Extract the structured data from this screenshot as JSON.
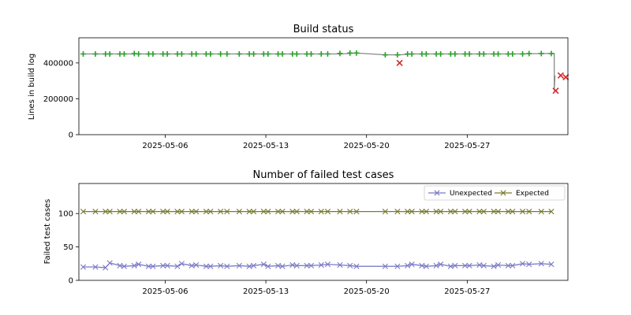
{
  "chart_data": [
    {
      "type": "line",
      "title": "Build status",
      "xlabel": "",
      "ylabel": "Lines in build log",
      "xlim": [
        "2025-04-30",
        "2025-06-03"
      ],
      "ylim": [
        0,
        540000
      ],
      "xticks": [
        "2025-05-06",
        "2025-05-13",
        "2025-05-20",
        "2025-05-27"
      ],
      "yticks": [
        0,
        200000,
        400000
      ],
      "ytick_labels": [
        "0",
        "200000",
        "400000"
      ],
      "legend": "none",
      "colors": {
        "line": "#888888",
        "pass": "#2ca02c",
        "fail": "#d62728"
      },
      "line": {
        "x": [
          "2025-04-30",
          "2025-05-18",
          "2025-05-19",
          "2025-05-21",
          "2025-05-22",
          "2025-05-23",
          "2025-05-30",
          "2025-06-01",
          "2025-06-02",
          "2025-06-02",
          "2025-06-02"
        ],
        "y": [
          450000,
          450000,
          455000,
          445000,
          445000,
          450000,
          450000,
          452000,
          452000,
          245000,
          330000
        ]
      },
      "series": [
        {
          "status": "pass",
          "x": [
            "2025-04-30",
            "2025-05-01",
            "2025-05-01",
            "2025-05-02",
            "2025-05-02",
            "2025-05-03",
            "2025-05-03",
            "2025-05-04",
            "2025-05-04",
            "2025-05-05",
            "2025-05-05",
            "2025-05-06",
            "2025-05-06",
            "2025-05-07",
            "2025-05-07",
            "2025-05-08",
            "2025-05-08",
            "2025-05-09",
            "2025-05-09",
            "2025-05-10",
            "2025-05-11",
            "2025-05-11",
            "2025-05-12",
            "2025-05-12",
            "2025-05-13",
            "2025-05-13",
            "2025-05-14",
            "2025-05-14",
            "2025-05-15",
            "2025-05-15",
            "2025-05-16",
            "2025-05-16",
            "2025-05-17",
            "2025-05-18",
            "2025-05-18",
            "2025-05-19",
            "2025-05-21",
            "2025-05-22",
            "2025-05-22",
            "2025-05-23",
            "2025-05-23",
            "2025-05-24",
            "2025-05-24",
            "2025-05-25",
            "2025-05-25",
            "2025-05-26",
            "2025-05-26",
            "2025-05-27",
            "2025-05-27",
            "2025-05-28",
            "2025-05-28",
            "2025-05-29",
            "2025-05-29",
            "2025-05-30",
            "2025-05-30",
            "2025-05-31",
            "2025-06-01",
            "2025-06-01"
          ],
          "y": [
            450000,
            450000,
            450000,
            450000,
            450000,
            450000,
            452000,
            450000,
            450000,
            450000,
            450000,
            450000,
            450000,
            450000,
            450000,
            450000,
            450000,
            450000,
            450000,
            450000,
            450000,
            450000,
            450000,
            450000,
            450000,
            450000,
            450000,
            450000,
            450000,
            450000,
            450000,
            450000,
            450000,
            453000,
            455000,
            455000,
            445000,
            445000,
            450000,
            450000,
            450000,
            450000,
            450000,
            450000,
            450000,
            450000,
            450000,
            450000,
            450000,
            450000,
            450000,
            450000,
            450000,
            450000,
            450000,
            452000,
            452000,
            452000
          ]
        },
        {
          "status": "fail",
          "x": [
            "2025-05-22",
            "2025-06-02",
            "2025-06-02",
            "2025-06-02"
          ],
          "y": [
            400000,
            245000,
            330000,
            320000
          ]
        }
      ]
    },
    {
      "type": "line",
      "title": "Number of failed test cases",
      "xlabel": "",
      "ylabel": "Failed test cases",
      "xlim": [
        "2025-04-30",
        "2025-06-03"
      ],
      "ylim": [
        0,
        145
      ],
      "xticks": [
        "2025-05-06",
        "2025-05-13",
        "2025-05-20",
        "2025-05-27"
      ],
      "yticks": [
        0,
        50,
        100
      ],
      "ytick_labels": [
        "0",
        "50",
        "100"
      ],
      "legend": "top-right",
      "colors": {
        "Unexpected": "#7b7bc6",
        "Expected": "#7a7a30"
      },
      "x": [
        "2025-04-30",
        "2025-05-01",
        "2025-05-01",
        "2025-05-02",
        "2025-05-02",
        "2025-05-03",
        "2025-05-03",
        "2025-05-04",
        "2025-05-04",
        "2025-05-05",
        "2025-05-05",
        "2025-05-06",
        "2025-05-06",
        "2025-05-07",
        "2025-05-07",
        "2025-05-08",
        "2025-05-08",
        "2025-05-09",
        "2025-05-09",
        "2025-05-10",
        "2025-05-11",
        "2025-05-11",
        "2025-05-12",
        "2025-05-12",
        "2025-05-13",
        "2025-05-13",
        "2025-05-14",
        "2025-05-14",
        "2025-05-15",
        "2025-05-15",
        "2025-05-16",
        "2025-05-16",
        "2025-05-17",
        "2025-05-18",
        "2025-05-18",
        "2025-05-19",
        "2025-05-21",
        "2025-05-22",
        "2025-05-22",
        "2025-05-23",
        "2025-05-23",
        "2025-05-24",
        "2025-05-24",
        "2025-05-25",
        "2025-05-25",
        "2025-05-26",
        "2025-05-26",
        "2025-05-27",
        "2025-05-27",
        "2025-05-28",
        "2025-05-28",
        "2025-05-29",
        "2025-05-29",
        "2025-05-30",
        "2025-05-30",
        "2025-05-31",
        "2025-06-01",
        "2025-06-01"
      ],
      "series": [
        {
          "name": "Unexpected",
          "values": [
            20,
            20,
            19,
            26,
            22,
            21,
            22,
            24,
            21,
            21,
            22,
            22,
            21,
            25,
            22,
            23,
            21,
            21,
            22,
            21,
            22,
            21,
            22,
            24,
            21,
            22,
            21,
            23,
            22,
            22,
            22,
            23,
            24,
            23,
            22,
            21,
            21,
            21,
            22,
            24,
            22,
            21,
            22,
            24,
            21,
            22,
            22,
            22,
            23,
            22,
            21,
            23,
            22,
            22,
            25,
            24,
            25,
            24
          ]
        },
        {
          "name": "Expected",
          "values": [
            103,
            103,
            103,
            103,
            103,
            103,
            103,
            103,
            103,
            103,
            103,
            103,
            103,
            103,
            103,
            103,
            103,
            103,
            103,
            103,
            103,
            103,
            103,
            103,
            103,
            103,
            103,
            103,
            103,
            103,
            103,
            103,
            103,
            103,
            103,
            103,
            103,
            103,
            103,
            103,
            103,
            103,
            103,
            103,
            103,
            103,
            103,
            103,
            103,
            103,
            103,
            103,
            103,
            103,
            103,
            103,
            103,
            103
          ]
        }
      ]
    }
  ]
}
